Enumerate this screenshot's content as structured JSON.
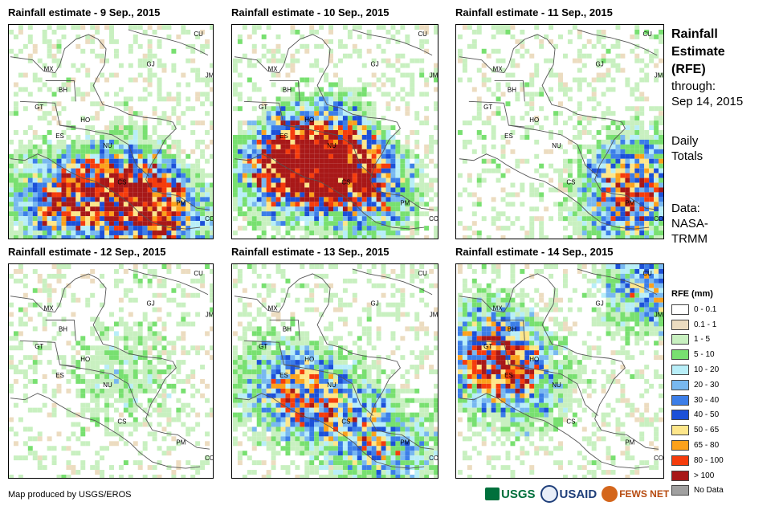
{
  "panels": [
    {
      "title": "Rainfall estimate - 9 Sep., 2015",
      "intensity": 0.9,
      "focus": "south"
    },
    {
      "title": "Rainfall estimate - 10 Sep., 2015",
      "intensity": 1.0,
      "focus": "center"
    },
    {
      "title": "Rainfall estimate - 11 Sep., 2015",
      "intensity": 0.55,
      "focus": "southeast"
    },
    {
      "title": "Rainfall estimate - 12 Sep., 2015",
      "intensity": 0.25,
      "focus": "light"
    },
    {
      "title": "Rainfall estimate - 13 Sep., 2015",
      "intensity": 0.6,
      "focus": "west"
    },
    {
      "title": "Rainfall estimate - 14 Sep., 2015",
      "intensity": 0.7,
      "focus": "north"
    }
  ],
  "country_labels": [
    "CU",
    "GJ",
    "JM",
    "MX",
    "BH",
    "GT",
    "HO",
    "ES",
    "NU",
    "CS",
    "PM",
    "CO"
  ],
  "side": {
    "title_lines": [
      "Rainfall",
      "Estimate",
      "(RFE)"
    ],
    "through_label": "through:",
    "date": "Sep 14, 2015",
    "period_lines": [
      "Daily",
      "Totals"
    ],
    "source_lines": [
      "Data:",
      "NASA-",
      "TRMM"
    ]
  },
  "legend": {
    "title": "RFE (mm)",
    "items": [
      {
        "label": "0 - 0.1",
        "color": "#ffffff"
      },
      {
        "label": "0.1 - 1",
        "color": "#ecdcc0"
      },
      {
        "label": "1 - 5",
        "color": "#c8f0c0"
      },
      {
        "label": "5 - 10",
        "color": "#78e070"
      },
      {
        "label": "10 - 20",
        "color": "#b8eef8"
      },
      {
        "label": "20 - 30",
        "color": "#78b8f0"
      },
      {
        "label": "30 - 40",
        "color": "#3c7ee8"
      },
      {
        "label": "40 - 50",
        "color": "#1c50d8"
      },
      {
        "label": "50 - 65",
        "color": "#fde68a"
      },
      {
        "label": "65 - 80",
        "color": "#fba11c"
      },
      {
        "label": "80 - 100",
        "color": "#f53c0c"
      },
      {
        "label": "> 100",
        "color": "#a81818"
      },
      {
        "label": "No Data",
        "color": "#a0a0a0"
      }
    ]
  },
  "credit": "Map produced by USGS/EROS",
  "logos": {
    "usgs": "USGS",
    "usaid": "USAID",
    "fews": "FEWS NET"
  }
}
